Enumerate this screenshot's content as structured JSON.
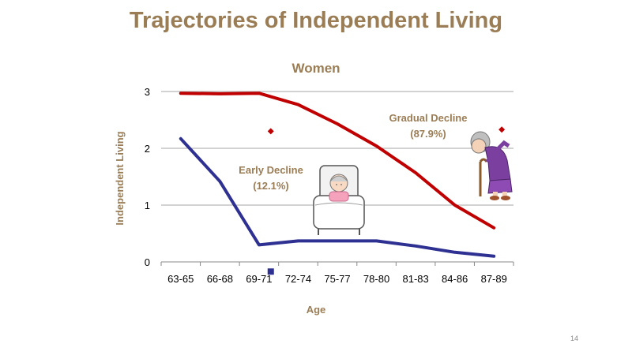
{
  "slide": {
    "title": "Trajectories of Independent Living",
    "page_number": "14"
  },
  "chart_data": {
    "type": "line",
    "title": "Women",
    "xlabel": "Age",
    "ylabel": "Independent Living",
    "categories": [
      "63-65",
      "66-68",
      "69-71",
      "72-74",
      "75-77",
      "78-80",
      "81-83",
      "84-86",
      "87-89"
    ],
    "yticks": [
      "0",
      "1",
      "2",
      "3"
    ],
    "ylim": [
      0,
      3
    ],
    "grid": true,
    "series": [
      {
        "name": "Gradual Decline",
        "color": "#c00000",
        "values": [
          2.97,
          2.96,
          2.97,
          2.77,
          2.43,
          2.04,
          1.57,
          1.0,
          0.6
        ]
      },
      {
        "name": "Early Decline",
        "color": "#2e3192",
        "values": [
          2.17,
          1.42,
          0.3,
          0.37,
          0.37,
          0.37,
          0.28,
          0.17,
          0.1
        ]
      }
    ],
    "annotations": [
      {
        "name": "gradual",
        "label": "Gradual Decline",
        "pct": "(87.9%)",
        "color": "#9b7d55"
      },
      {
        "name": "early",
        "label": "Early Decline",
        "pct": "(12.1%)",
        "color": "#9b7d55"
      }
    ],
    "markers": [
      {
        "name": "gradual",
        "shape": "diamond",
        "color": "#c00000",
        "x": 2.3,
        "y": 2.3
      },
      {
        "name": "gradual",
        "shape": "diamond",
        "color": "#c00000",
        "x": 8.2,
        "y": 2.33
      },
      {
        "name": "early",
        "shape": "square",
        "color": "#2e3192",
        "x": 2.3,
        "y": -0.17
      }
    ]
  }
}
